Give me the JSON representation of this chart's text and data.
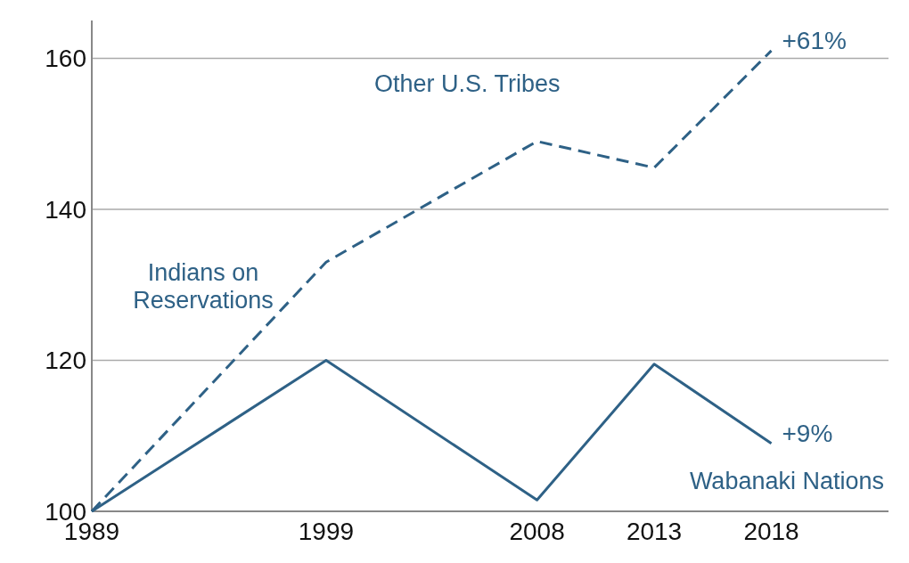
{
  "chart_data": {
    "type": "line",
    "x": [
      1989,
      1999,
      2008,
      2013,
      2018
    ],
    "xlim": [
      1989,
      2023
    ],
    "xticks": [
      1989,
      1999,
      2008,
      2013,
      2018
    ],
    "ylim": [
      100,
      165
    ],
    "yticks": [
      100,
      120,
      140,
      160
    ],
    "grid": "y",
    "marker": "none",
    "series": [
      {
        "name": "Other U.S. Tribes",
        "color": "#2e6186",
        "line_style": "dashed",
        "values": [
          100,
          133,
          149,
          145.5,
          161
        ]
      },
      {
        "name": "Wabanaki Nations",
        "color": "#2e6186",
        "line_style": "solid",
        "values": [
          100,
          120,
          101.5,
          119.5,
          109
        ]
      }
    ],
    "annotations": [
      "Indians on Reservations",
      {
        "text": "+61%",
        "x": 2018,
        "y": 161
      },
      {
        "text": "+9%",
        "x": 2018,
        "y": 109
      }
    ]
  }
}
